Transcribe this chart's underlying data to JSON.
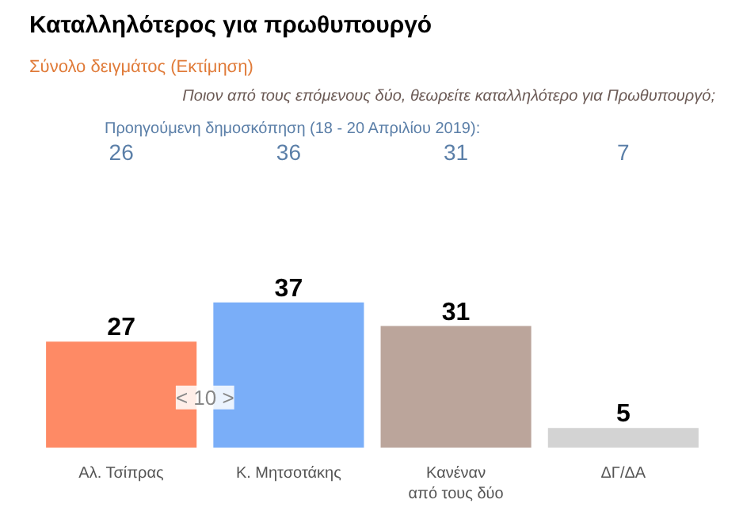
{
  "chart_data": {
    "type": "bar",
    "title": "Καταλληλότερος για πρωθυπουργό",
    "subtitle": "Σύνολο δειγμάτος   (Εκτίμηση)",
    "categories": [
      "Αλ. Τσίπρας",
      "Κ. Μητσοτάκης",
      "Κανέναν\nαπό τους δύο",
      "ΔΓ/ΔΑ"
    ],
    "values": [
      27,
      37,
      31,
      5
    ],
    "colors": [
      "#fe8a65",
      "#7aaef8",
      "#bba59b",
      "#d3d3d3"
    ],
    "data_labels": true,
    "tick_labels": "x",
    "annotations": [
      "Ποιον από τους επόμενους δύο, θεωρείτε καταλληλότερο για Πρωθυπουργό;",
      "Προηγούμενη δημοσκόπηση (18 - 20 Απριλίου 2019):",
      "26",
      "36",
      "31",
      "7",
      "< 10 >"
    ]
  }
}
